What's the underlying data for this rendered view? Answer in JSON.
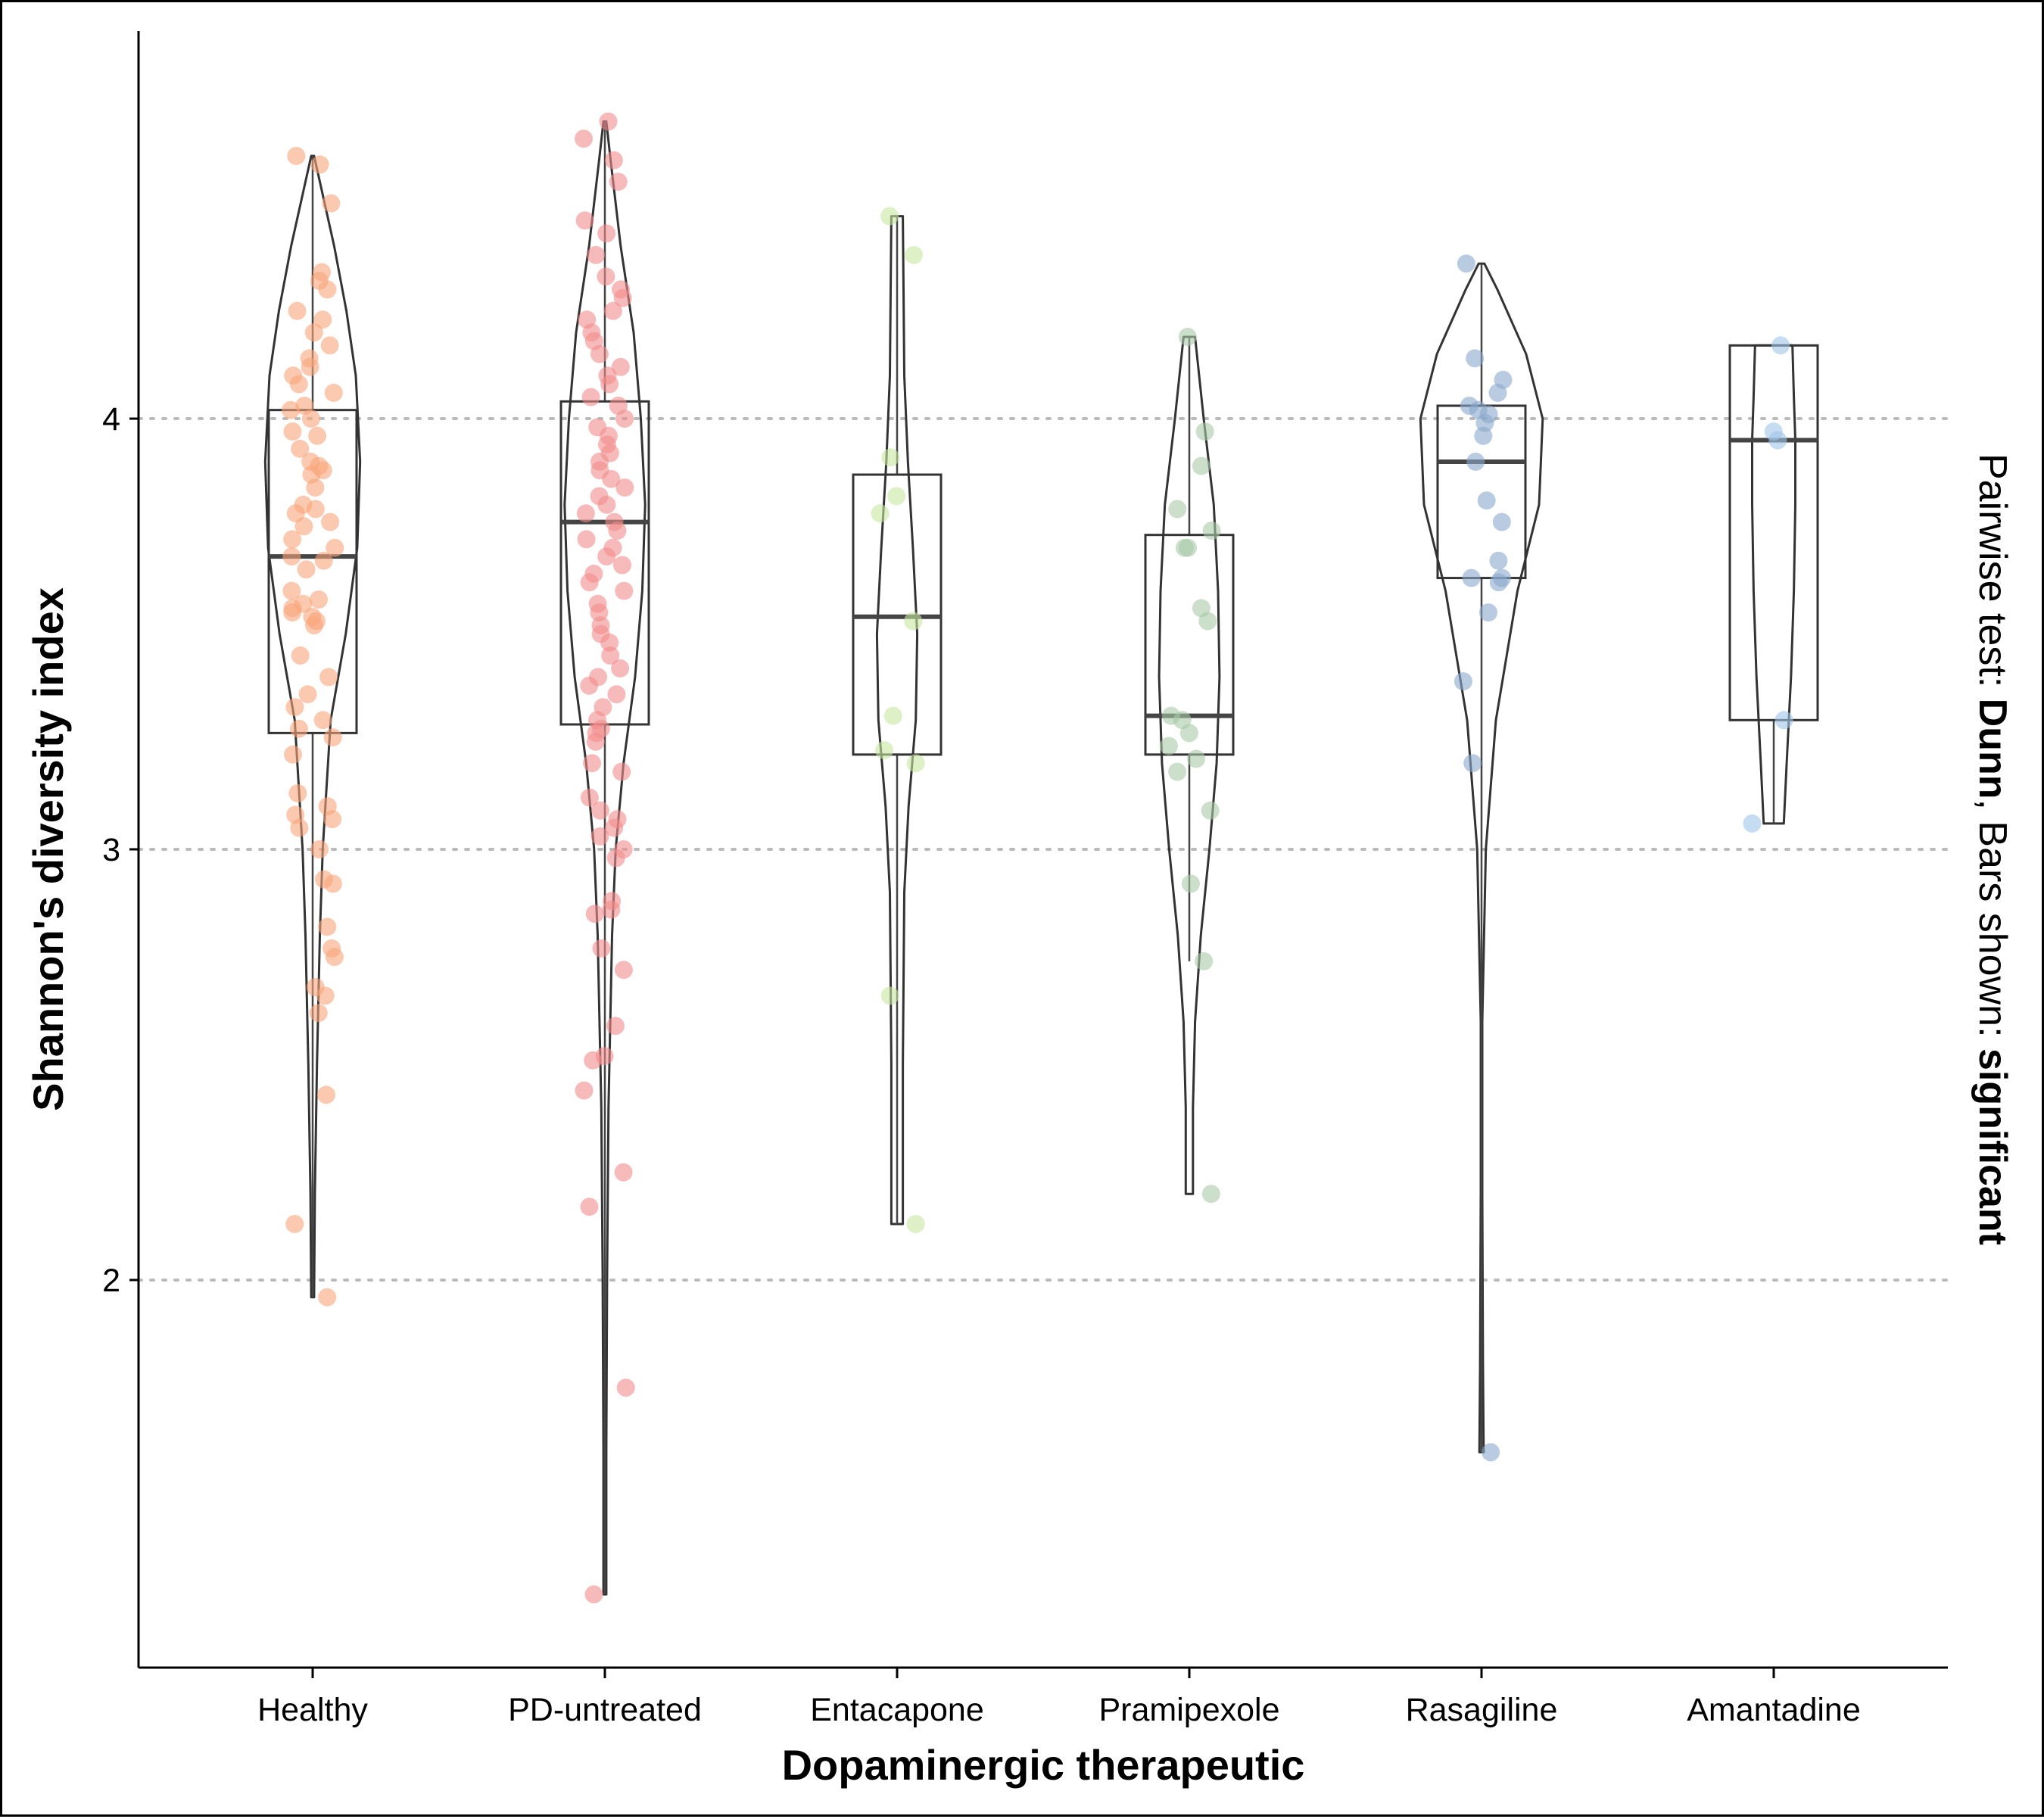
{
  "chart_data": {
    "type": "violin",
    "xlabel": "Dopaminergic therapeutic",
    "ylabel": "Shannon's diversity index",
    "ylim": [
      1.1,
      4.9
    ],
    "yticks": [
      2,
      3,
      4
    ],
    "grid": "horizontal dotted at y ticks",
    "side_note": {
      "prefix": "Pairwise test: ",
      "test": "Dunn",
      "middle": ", Bars shown: ",
      "shown": "significant"
    },
    "categories": [
      "Healthy",
      "PD-untreated",
      "Entacapone",
      "Pramipexole",
      "Rasagiline",
      "Amantadine"
    ],
    "series": [
      {
        "name": "Healthy",
        "color": "#F9A57A",
        "box": {
          "q1": 3.27,
          "median": 3.68,
          "q3": 4.02,
          "whisker_low": 1.96,
          "whisker_high": 4.61
        },
        "violin": {
          "min": 1.96,
          "max": 4.61,
          "profile": [
            [
              1.96,
              0.02
            ],
            [
              2.2,
              0.03
            ],
            [
              2.5,
              0.06
            ],
            [
              2.8,
              0.1
            ],
            [
              3.0,
              0.14
            ],
            [
              3.3,
              0.25
            ],
            [
              3.5,
              0.46
            ],
            [
              3.7,
              0.62
            ],
            [
              3.9,
              0.66
            ],
            [
              4.1,
              0.6
            ],
            [
              4.25,
              0.47
            ],
            [
              4.4,
              0.3
            ],
            [
              4.55,
              0.1
            ],
            [
              4.61,
              0.02
            ]
          ]
        },
        "points": [
          1.96,
          2.13,
          2.43,
          2.62,
          2.66,
          2.68,
          2.75,
          2.77,
          2.82,
          2.92,
          2.93,
          3.0,
          3.05,
          3.07,
          3.08,
          3.1,
          3.13,
          3.22,
          3.26,
          3.28,
          3.3,
          3.33,
          3.36,
          3.4,
          3.45,
          3.52,
          3.53,
          3.54,
          3.55,
          3.56,
          3.57,
          3.58,
          3.6,
          3.65,
          3.67,
          3.68,
          3.7,
          3.72,
          3.75,
          3.76,
          3.78,
          3.79,
          3.8,
          3.84,
          3.87,
          3.88,
          3.89,
          3.9,
          3.93,
          3.96,
          3.97,
          4.0,
          4.02,
          4.03,
          4.06,
          4.08,
          4.1,
          4.12,
          4.14,
          4.17,
          4.2,
          4.23,
          4.25,
          4.3,
          4.32,
          4.34,
          4.5,
          4.59,
          4.61
        ]
      },
      {
        "name": "PD-untreated",
        "color": "#F28C8C",
        "box": {
          "q1": 3.29,
          "median": 3.76,
          "q3": 4.04,
          "whisker_low": 1.27,
          "whisker_high": 4.69
        },
        "violin": {
          "min": 1.27,
          "max": 4.69,
          "profile": [
            [
              1.27,
              0.02
            ],
            [
              1.6,
              0.02
            ],
            [
              2.0,
              0.03
            ],
            [
              2.4,
              0.05
            ],
            [
              2.8,
              0.1
            ],
            [
              3.0,
              0.15
            ],
            [
              3.2,
              0.26
            ],
            [
              3.4,
              0.42
            ],
            [
              3.6,
              0.52
            ],
            [
              3.8,
              0.56
            ],
            [
              4.0,
              0.5
            ],
            [
              4.2,
              0.4
            ],
            [
              4.4,
              0.22
            ],
            [
              4.6,
              0.08
            ],
            [
              4.69,
              0.02
            ]
          ]
        },
        "points": [
          1.27,
          1.75,
          2.17,
          2.25,
          2.44,
          2.51,
          2.52,
          2.59,
          2.72,
          2.77,
          2.85,
          2.86,
          2.88,
          2.98,
          3.0,
          3.03,
          3.05,
          3.07,
          3.09,
          3.12,
          3.18,
          3.2,
          3.25,
          3.27,
          3.28,
          3.3,
          3.33,
          3.36,
          3.38,
          3.4,
          3.42,
          3.45,
          3.48,
          3.5,
          3.52,
          3.55,
          3.57,
          3.6,
          3.62,
          3.64,
          3.66,
          3.68,
          3.7,
          3.72,
          3.74,
          3.76,
          3.78,
          3.8,
          3.82,
          3.84,
          3.86,
          3.88,
          3.9,
          3.92,
          3.94,
          3.96,
          3.98,
          4.0,
          4.03,
          4.05,
          4.08,
          4.1,
          4.12,
          4.15,
          4.18,
          4.2,
          4.23,
          4.25,
          4.28,
          4.3,
          4.33,
          4.38,
          4.43,
          4.46,
          4.55,
          4.6,
          4.65,
          4.69
        ]
      },
      {
        "name": "Entacapone",
        "color": "#C8E6A0",
        "box": {
          "q1": 3.22,
          "median": 3.54,
          "q3": 3.87,
          "whisker_low": 2.13,
          "whisker_high": 4.47
        },
        "violin": {
          "min": 2.13,
          "max": 4.47,
          "profile": [
            [
              2.13,
              0.08
            ],
            [
              2.5,
              0.08
            ],
            [
              2.9,
              0.1
            ],
            [
              3.1,
              0.16
            ],
            [
              3.3,
              0.26
            ],
            [
              3.5,
              0.28
            ],
            [
              3.7,
              0.22
            ],
            [
              3.9,
              0.15
            ],
            [
              4.1,
              0.1
            ],
            [
              4.3,
              0.09
            ],
            [
              4.47,
              0.08
            ]
          ]
        },
        "points": [
          2.13,
          2.66,
          3.2,
          3.23,
          3.31,
          3.53,
          3.78,
          3.82,
          3.91,
          4.38,
          4.47
        ]
      },
      {
        "name": "Pramipexole",
        "color": "#A9C9A9",
        "box": {
          "q1": 3.22,
          "median": 3.31,
          "q3": 3.73,
          "whisker_low": 2.74,
          "whisker_high": 4.19
        },
        "violin": {
          "min": 2.2,
          "max": 4.19,
          "profile": [
            [
              2.2,
              0.05
            ],
            [
              2.4,
              0.05
            ],
            [
              2.6,
              0.08
            ],
            [
              2.8,
              0.16
            ],
            [
              3.0,
              0.28
            ],
            [
              3.2,
              0.38
            ],
            [
              3.4,
              0.42
            ],
            [
              3.6,
              0.4
            ],
            [
              3.8,
              0.34
            ],
            [
              4.0,
              0.2
            ],
            [
              4.19,
              0.08
            ]
          ]
        },
        "points": [
          2.2,
          2.74,
          2.92,
          3.09,
          3.18,
          3.21,
          3.24,
          3.27,
          3.3,
          3.31,
          3.53,
          3.56,
          3.7,
          3.7,
          3.74,
          3.79,
          3.89,
          3.97,
          4.19
        ]
      },
      {
        "name": "Rasagiline",
        "color": "#89A8CC",
        "box": {
          "q1": 3.63,
          "median": 3.9,
          "q3": 4.03,
          "whisker_low": 1.6,
          "whisker_high": 4.36
        },
        "violin": {
          "min": 1.6,
          "max": 4.36,
          "profile": [
            [
              1.6,
              0.03
            ],
            [
              1.8,
              0.02
            ],
            [
              2.2,
              0.01
            ],
            [
              2.6,
              0.01
            ],
            [
              3.0,
              0.06
            ],
            [
              3.3,
              0.2
            ],
            [
              3.6,
              0.5
            ],
            [
              3.8,
              0.8
            ],
            [
              4.0,
              0.85
            ],
            [
              4.15,
              0.62
            ],
            [
              4.3,
              0.22
            ],
            [
              4.36,
              0.04
            ]
          ]
        },
        "points": [
          1.6,
          3.2,
          3.39,
          3.55,
          3.62,
          3.63,
          3.63,
          3.67,
          3.76,
          3.81,
          3.9,
          3.96,
          3.99,
          4.01,
          4.02,
          4.03,
          4.06,
          4.09,
          4.14,
          4.36
        ]
      },
      {
        "name": "Amantadine",
        "color": "#9FC4E8",
        "box": {
          "q1": 3.3,
          "median": 3.95,
          "q3": 4.17,
          "whisker_low": 3.06,
          "whisker_high": 4.17
        },
        "violin": {
          "min": 3.06,
          "max": 4.17,
          "profile": [
            [
              3.06,
              0.14
            ],
            [
              3.2,
              0.18
            ],
            [
              3.4,
              0.24
            ],
            [
              3.6,
              0.28
            ],
            [
              3.8,
              0.3
            ],
            [
              3.95,
              0.3
            ],
            [
              4.05,
              0.28
            ],
            [
              4.17,
              0.26
            ]
          ]
        },
        "points": [
          3.06,
          3.3,
          3.95,
          3.97,
          4.17
        ]
      }
    ]
  }
}
